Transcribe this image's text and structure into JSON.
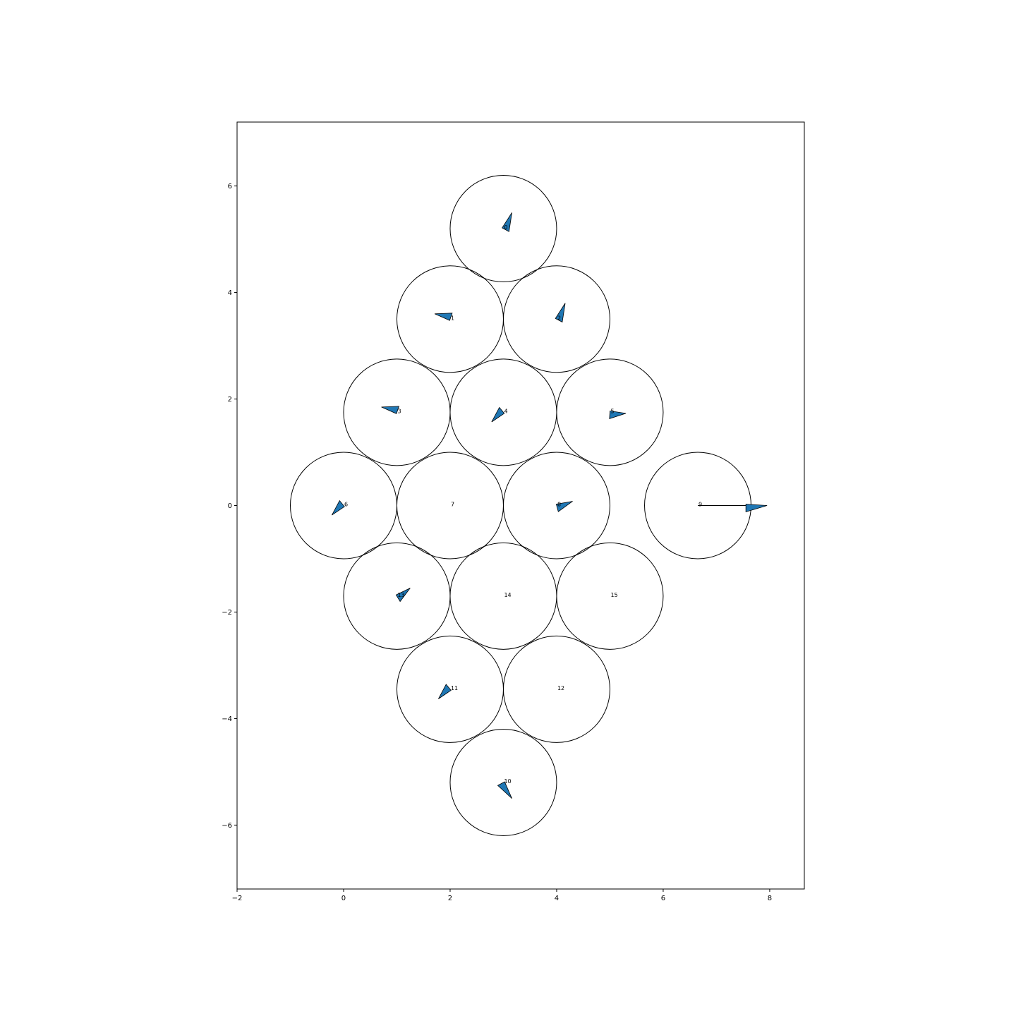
{
  "chart_data": {
    "type": "scatter",
    "title": "",
    "xlabel": "",
    "ylabel": "",
    "xlim": [
      -2,
      8.65
    ],
    "ylim": [
      -7.2,
      7.2
    ],
    "xticks": [
      -2,
      0,
      2,
      4,
      6,
      8
    ],
    "yticks": [
      -6,
      -4,
      -2,
      0,
      2,
      4,
      6
    ],
    "grid": false,
    "circle_radius": 1.0,
    "colors": {
      "arrow_fill": "#1f77b4",
      "edge": "#000000"
    },
    "nodes": [
      {
        "label": "0",
        "x": 3.0,
        "y": 5.2,
        "arrow": {
          "dx": 0.16,
          "dy": 0.3,
          "len": 0.3
        }
      },
      {
        "label": "1",
        "x": 2.0,
        "y": 3.5,
        "arrow": {
          "dx": -0.29,
          "dy": 0.1,
          "len": 0.3
        }
      },
      {
        "label": "2",
        "x": 4.0,
        "y": 3.5,
        "arrow": {
          "dx": 0.16,
          "dy": 0.3,
          "len": 0.3
        }
      },
      {
        "label": "3",
        "x": 1.0,
        "y": 1.75,
        "arrow": {
          "dx": -0.29,
          "dy": 0.1,
          "len": 0.3
        }
      },
      {
        "label": "4",
        "x": 3.0,
        "y": 1.75,
        "arrow": {
          "dx": -0.22,
          "dy": -0.18,
          "len": 0.3
        }
      },
      {
        "label": "5",
        "x": 5.0,
        "y": 1.75,
        "arrow": {
          "dx": 0.3,
          "dy": -0.02,
          "len": 0.3
        }
      },
      {
        "label": "6",
        "x": 0.0,
        "y": 0.0,
        "arrow": {
          "dx": -0.22,
          "dy": -0.18,
          "len": 0.3
        }
      },
      {
        "label": "7",
        "x": 2.0,
        "y": 0.0,
        "arrow": null
      },
      {
        "label": "8",
        "x": 4.0,
        "y": 0.0,
        "arrow": {
          "dx": 0.3,
          "dy": 0.08,
          "len": 0.3
        }
      },
      {
        "label": "9",
        "x": 6.65,
        "y": 0.0,
        "arrow": {
          "dx": 1.3,
          "dy": 0.0,
          "len": 1.3
        }
      },
      {
        "label": "10",
        "x": 3.0,
        "y": -5.2,
        "arrow": {
          "dx": 0.16,
          "dy": -0.3,
          "len": 0.3
        }
      },
      {
        "label": "11",
        "x": 2.0,
        "y": -3.45,
        "arrow": {
          "dx": -0.22,
          "dy": -0.18,
          "len": 0.3
        }
      },
      {
        "label": "12",
        "x": 4.0,
        "y": -3.45,
        "arrow": null
      },
      {
        "label": "13",
        "x": 1.0,
        "y": -1.7,
        "arrow": {
          "dx": 0.25,
          "dy": 0.15,
          "len": 0.3
        }
      },
      {
        "label": "14",
        "x": 3.0,
        "y": -1.7,
        "arrow": null
      },
      {
        "label": "15",
        "x": 5.0,
        "y": -1.7,
        "arrow": null
      }
    ]
  }
}
